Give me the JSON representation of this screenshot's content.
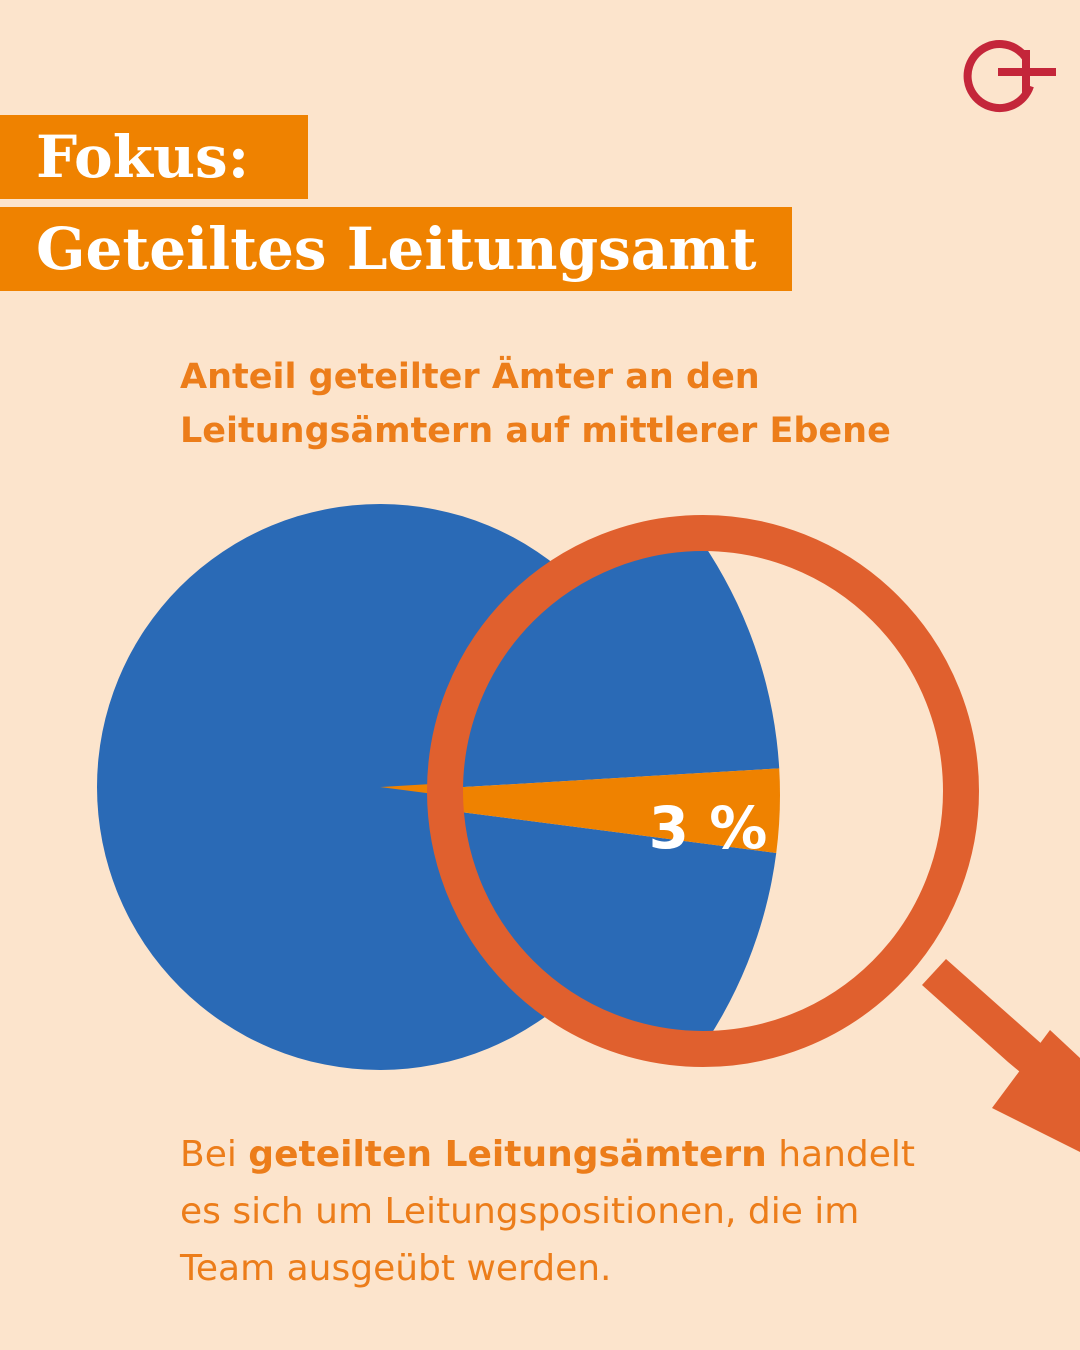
{
  "header": {
    "title_line1": "Fokus:",
    "title_line2": "Geteiltes Leitungsamt"
  },
  "chart_data": {
    "type": "pie",
    "title": "Anteil geteilter Ämter an den Leitungsämtern auf mittlerer Ebene",
    "slices": [
      {
        "label": "",
        "value": 97,
        "color": "#2a6ab6"
      },
      {
        "label": "3 %",
        "value": 3,
        "color": "#ef8200"
      }
    ],
    "highlight_label": "3 %"
  },
  "footer": {
    "text_before": "Bei ",
    "text_bold": "geteilten Leitungsämtern",
    "text_after": " handelt es sich um Leitungspositionen, die im Team ausgeübt werden."
  },
  "colors": {
    "background": "#fce4cc",
    "accent_orange": "#ef8200",
    "magnifier": "#e0602e",
    "pie_blue": "#2a6ab6",
    "logo_red": "#c4263a"
  },
  "icons": {
    "logo": "logo-icon",
    "magnifier": "magnifier-icon"
  }
}
